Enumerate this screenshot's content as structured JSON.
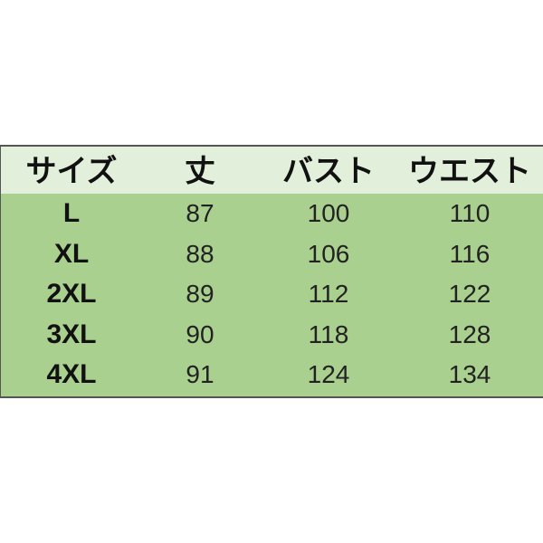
{
  "table": {
    "header": [
      "サイズ",
      "丈",
      "バスト",
      "ウエスト"
    ],
    "rows": [
      [
        "L",
        87,
        100,
        110
      ],
      [
        "XL",
        88,
        106,
        116
      ],
      [
        "2XL",
        89,
        112,
        122
      ],
      [
        "3XL",
        90,
        118,
        128
      ],
      [
        "4XL",
        91,
        124,
        134
      ]
    ]
  }
}
